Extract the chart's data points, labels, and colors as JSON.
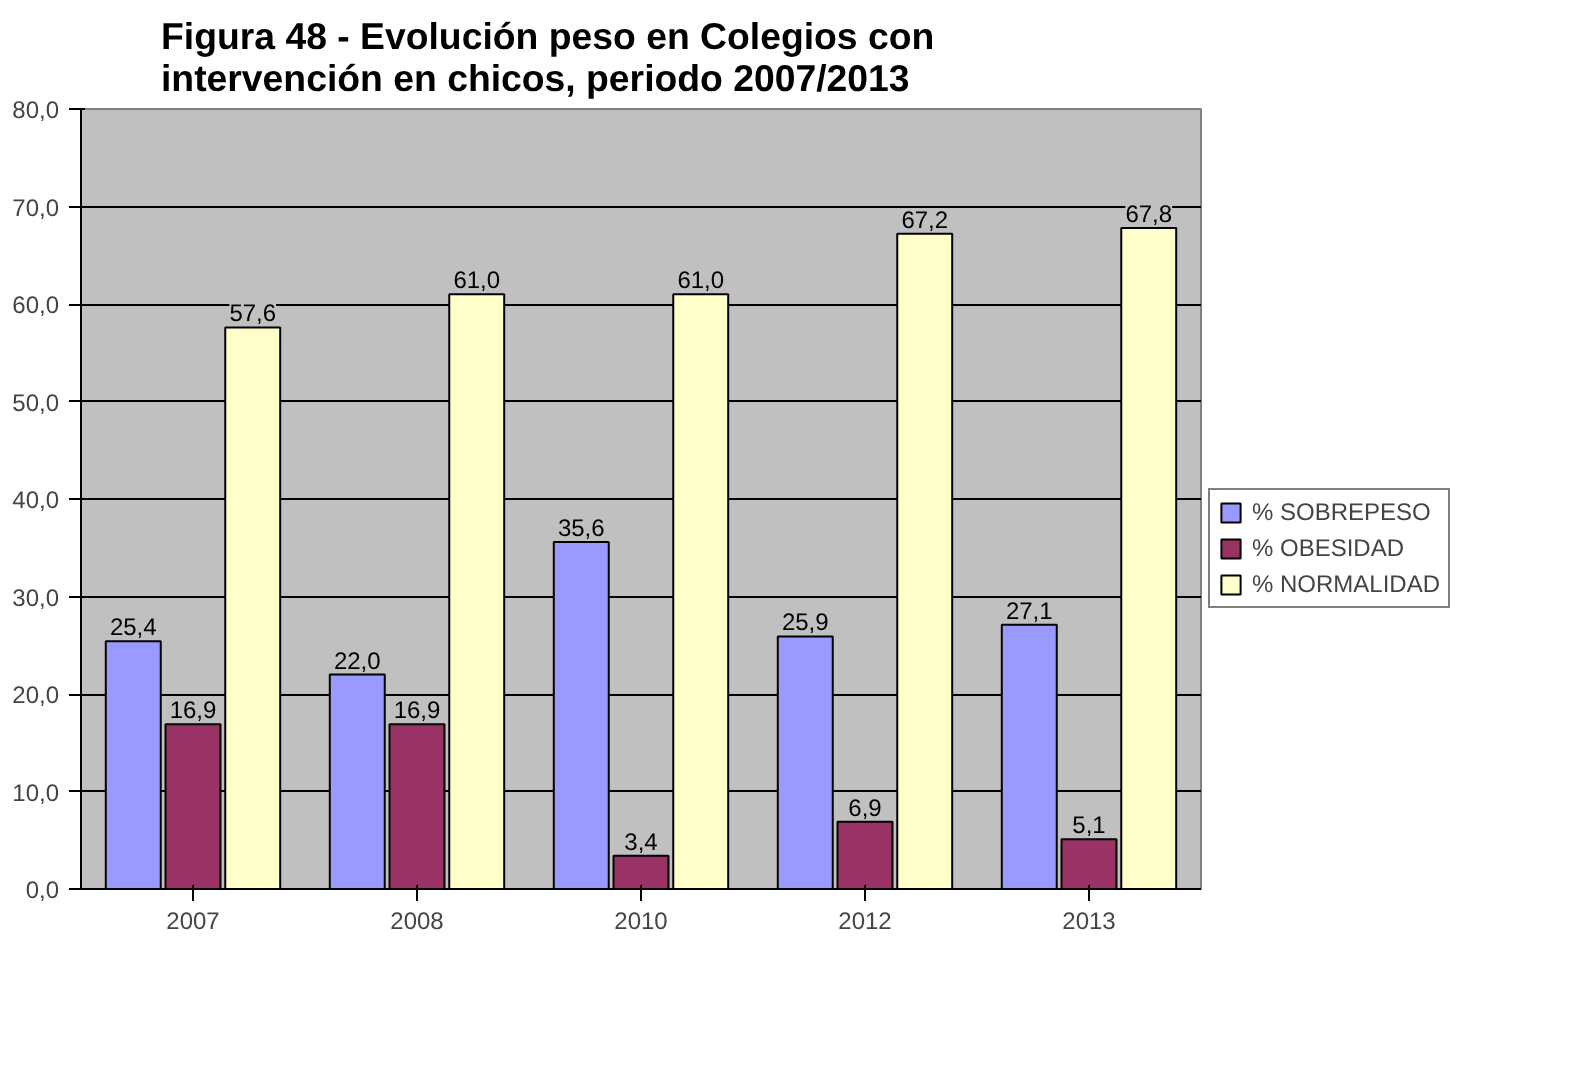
{
  "chart_data": {
    "type": "bar",
    "title": "Figura 48 - Evolución peso en Colegios con\nintervención en chicos, periodo 2007/2013",
    "categories": [
      "2007",
      "2008",
      "2010",
      "2012",
      "2013"
    ],
    "series": [
      {
        "name": "% SOBREPESO",
        "color": "#9999ff",
        "values": [
          25.4,
          22.0,
          35.6,
          25.9,
          27.1
        ],
        "value_labels": [
          "25,4",
          "22,0",
          "35,6",
          "25,9",
          "27,1"
        ]
      },
      {
        "name": "% OBESIDAD",
        "color": "#993366",
        "values": [
          16.9,
          16.9,
          3.4,
          6.9,
          5.1
        ],
        "value_labels": [
          "16,9",
          "16,9",
          "3,4",
          "6,9",
          "5,1"
        ]
      },
      {
        "name": "% NORMALIDAD",
        "color": "#ffffcc",
        "values": [
          57.6,
          61.0,
          61.0,
          67.2,
          67.8
        ],
        "value_labels": [
          "57,6",
          "61,0",
          "61,0",
          "67,2",
          "67,8"
        ]
      }
    ],
    "ylim": [
      0,
      80
    ],
    "yticks": [
      {
        "value": 0,
        "label": "0,0"
      },
      {
        "value": 10,
        "label": "10,0"
      },
      {
        "value": 20,
        "label": "20,0"
      },
      {
        "value": 30,
        "label": "30,0"
      },
      {
        "value": 40,
        "label": "40,0"
      },
      {
        "value": 50,
        "label": "50,0"
      },
      {
        "value": 60,
        "label": "60,0"
      },
      {
        "value": 70,
        "label": "70,0"
      },
      {
        "value": 80,
        "label": "80,0"
      }
    ],
    "grid": "y",
    "legend": "right"
  }
}
